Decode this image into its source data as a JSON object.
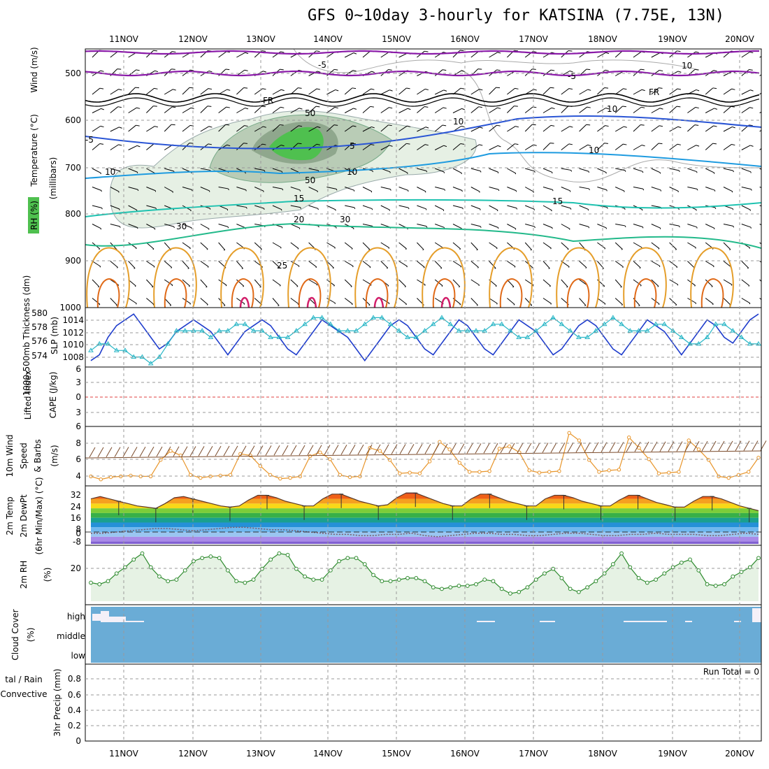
{
  "title": "GFS 0~10day 3-hourly for KATSINA (7.75E, 13N)",
  "dates": [
    "11NOV",
    "12NOV",
    "13NOV",
    "14NOV",
    "15NOV",
    "16NOV",
    "17NOV",
    "18NOV",
    "19NOV",
    "20NOV"
  ],
  "colors": {
    "wind_barb": "#000000",
    "rh_light": "#e6f0e4",
    "rh_mid": "#b9ccb6",
    "rh_dark": "#8fa78d",
    "rh_green": "#4fc04f",
    "t_neg5": "#8a1aa8",
    "t_fr": "#000000",
    "t_5": "#2a55d5",
    "t_10": "#1e9be0",
    "t_15": "#1ec2b0",
    "t_20": "#22b98a",
    "t_warm": "#e59e2a",
    "t_hot": "#e06a18",
    "t_hotter": "#d21f6a",
    "slp": "#1e3ccc",
    "thickness": "#28b6c6",
    "wind10": "#e8952a",
    "windbarb10": "#7a4a2a",
    "rh2m": "#2e8b2e",
    "cloud": "#6aacd6",
    "gridline": "#999999"
  },
  "panels": {
    "upper": {
      "label_wind": "Wind (m/s)",
      "label_temp": "Temperature (°C)",
      "label_rh": "RH (%)",
      "label_mb": "(millibars)",
      "yticks": [
        "500",
        "600",
        "700",
        "800",
        "900",
        "1000"
      ],
      "contour_labels": [
        "-5",
        "-5",
        "FR",
        "FR",
        "-5",
        "5",
        "10",
        "10",
        "10",
        "15",
        "15",
        "20",
        "25",
        "10",
        "10",
        "50",
        "50",
        "30",
        "30",
        "10"
      ]
    },
    "pressure": {
      "label_thick": "1000-500mb Thickness (dm)",
      "label_slp": "SLP (mb)",
      "thick_ticks": [
        "580",
        "578",
        "576",
        "574"
      ],
      "slp_ticks": [
        "1014",
        "1012",
        "1010",
        "1008"
      ]
    },
    "stability": {
      "label_li": "Lifted Index",
      "label_cape": "CAPE (J/kg)",
      "yticks": [
        "6",
        "3",
        "0",
        "3",
        "6"
      ]
    },
    "wind10m": {
      "label_a": "10m Wind",
      "label_b": "Speed",
      "label_c": "& Barbs",
      "label_unit": "(m/s)",
      "yticks": [
        "8",
        "6",
        "4"
      ]
    },
    "temp2m": {
      "label_a": "2m Temp",
      "label_b": "2m DewPt",
      "label_c": "(6hr Min/Max) (°C)",
      "yticks": [
        "32",
        "24",
        "16",
        "8",
        "0",
        "-8"
      ]
    },
    "rh2m": {
      "label_a": "2m RH",
      "label_unit": "(%)",
      "yticks": [
        "20"
      ]
    },
    "cloud": {
      "label_a": "Cloud Cover",
      "label_unit": "(%)",
      "levels": [
        "high",
        "middle",
        "low"
      ]
    },
    "precip": {
      "label_a": "tal / Rain",
      "label_b": "Convective",
      "label_unit": "3hr Precip (mm)",
      "yticks": [
        "0.8",
        "0.6",
        "0.4",
        "0.2",
        "0"
      ],
      "run_total": "Run Total = 0"
    }
  },
  "chart_data": {
    "type": "line",
    "x": "3-hourly steps from 10NOV 12Z to 20NOV 09Z",
    "slp_mb": [
      1007,
      1008,
      1011,
      1013,
      1014,
      1015,
      1013,
      1011,
      1009,
      1010,
      1012,
      1013,
      1014,
      1013,
      1012,
      1010,
      1008,
      1010,
      1012,
      1013,
      1014,
      1013,
      1011,
      1009,
      1008,
      1010,
      1012,
      1014,
      1013,
      1012,
      1011,
      1009,
      1007,
      1009,
      1011,
      1013,
      1014,
      1013,
      1011,
      1009,
      1008,
      1010,
      1012,
      1014,
      1013,
      1011,
      1009,
      1008,
      1010,
      1012,
      1014,
      1013,
      1012,
      1010,
      1008,
      1009,
      1011,
      1013,
      1014,
      1013,
      1011,
      1009,
      1008,
      1010,
      1012,
      1014,
      1013,
      1012,
      1010,
      1008,
      1010,
      1012,
      1014,
      1013,
      1011,
      1010,
      1012,
      1014,
      1015
    ],
    "thickness_dm": [
      574,
      575,
      575,
      574,
      574,
      573,
      573,
      572,
      573,
      575,
      577,
      577,
      577,
      577,
      576,
      577,
      577,
      578,
      578,
      577,
      577,
      576,
      576,
      576,
      577,
      578,
      579,
      579,
      578,
      577,
      577,
      577,
      578,
      579,
      579,
      578,
      577,
      576,
      576,
      577,
      578,
      579,
      578,
      577,
      577,
      577,
      577,
      578,
      578,
      577,
      576,
      576,
      577,
      578,
      579,
      578,
      577,
      576,
      576,
      577,
      578,
      579,
      578,
      577,
      577,
      577,
      578,
      578,
      577,
      576,
      575,
      575,
      576,
      578,
      578,
      577,
      576,
      575,
      575
    ],
    "wind10m_ms": [
      3.8,
      3.4,
      3.7,
      3.8,
      3.9,
      3.8,
      3.8,
      6.0,
      7.2,
      6.6,
      4.0,
      3.6,
      3.8,
      3.9,
      4.0,
      6.8,
      6.6,
      5.2,
      4.0,
      3.5,
      3.6,
      3.8,
      6.5,
      7.0,
      6.1,
      4.0,
      3.7,
      3.8,
      7.6,
      7.2,
      6.0,
      4.2,
      4.3,
      4.2,
      5.8,
      8.4,
      7.4,
      5.6,
      4.4,
      4.4,
      4.5,
      7.5,
      7.8,
      7.0,
      4.6,
      4.3,
      4.4,
      4.5,
      9.6,
      8.6,
      6.0,
      4.4,
      4.6,
      4.7,
      9.0,
      7.6,
      6.1,
      4.2,
      4.3,
      4.4,
      8.6,
      7.4,
      6.0,
      3.8,
      3.6,
      4.0,
      4.4,
      6.3
    ],
    "temp2m_c": [
      28,
      30,
      28,
      26,
      24,
      22,
      21,
      20,
      24,
      29,
      30,
      28,
      26,
      24,
      22,
      21,
      22,
      27,
      31,
      31,
      29,
      26,
      24,
      22,
      22,
      28,
      32,
      32,
      29,
      26,
      24,
      22,
      23,
      29,
      33,
      33,
      30,
      27,
      24,
      22,
      22,
      28,
      32,
      32,
      29,
      26,
      24,
      22,
      22,
      28,
      31,
      31,
      29,
      26,
      24,
      22,
      22,
      27,
      31,
      31,
      28,
      25,
      23,
      21,
      21,
      26,
      30,
      30,
      28,
      25,
      22,
      20,
      18
    ],
    "dewpt2m_c": [
      -1,
      -1,
      0,
      1,
      2,
      3,
      3,
      2,
      1,
      2,
      3,
      4,
      4,
      3,
      2,
      2,
      1,
      0,
      -1,
      -2,
      -2,
      -3,
      -3,
      -2,
      -2,
      -1,
      -3,
      -4,
      -3,
      -2,
      -1,
      -1,
      -2,
      -2,
      -3,
      -3,
      -2,
      -1,
      -1,
      -2,
      -3,
      -3,
      -2,
      -2,
      -1,
      -2,
      -2,
      -2,
      -3,
      -3,
      -2,
      -1,
      -2
    ],
    "rh2m_pct": [
      12,
      11,
      13,
      18,
      22,
      27,
      31,
      22,
      16,
      13,
      14,
      20,
      26,
      28,
      29,
      28,
      20,
      13,
      12,
      14,
      21,
      27,
      31,
      30,
      21,
      16,
      14,
      14,
      20,
      26,
      28,
      28,
      24,
      17,
      13,
      13,
      14,
      15,
      15,
      13,
      9,
      8,
      9,
      10,
      10,
      11,
      14,
      13,
      8,
      5,
      6,
      9,
      14,
      18,
      21,
      15,
      8,
      6,
      9,
      13,
      18,
      24,
      31,
      22,
      15,
      12,
      14,
      18,
      22,
      25,
      27,
      20,
      11,
      10,
      11,
      16,
      19,
      22,
      28
    ],
    "run_total_precip_mm": 0
  }
}
